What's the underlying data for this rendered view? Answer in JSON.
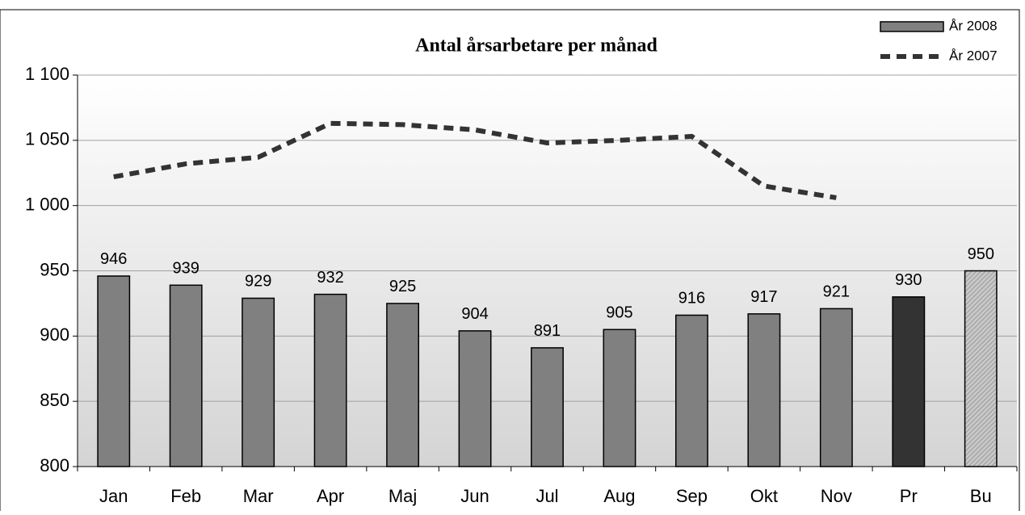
{
  "chart_data": {
    "type": "bar_line",
    "title": "Antal årsarbetare per månad",
    "categories": [
      "Jan",
      "Feb",
      "Mar",
      "Apr",
      "Maj",
      "Jun",
      "Jul",
      "Aug",
      "Sep",
      "Okt",
      "Nov",
      "Pr",
      "Bu"
    ],
    "series": [
      {
        "name": "År 2008",
        "type": "bar",
        "color": "#808080",
        "point_colors": [
          "#808080",
          "#808080",
          "#808080",
          "#808080",
          "#808080",
          "#808080",
          "#808080",
          "#808080",
          "#808080",
          "#808080",
          "#808080",
          "#333333",
          "#b4b4b4"
        ],
        "values": [
          946,
          939,
          929,
          932,
          925,
          904,
          891,
          905,
          916,
          917,
          921,
          930,
          950
        ]
      },
      {
        "name": "År 2007",
        "type": "line",
        "color": "#333333",
        "values": [
          1022,
          1032,
          1037,
          1063,
          1062,
          1058,
          1048,
          1050,
          1053,
          1015,
          1006,
          null,
          null
        ]
      }
    ],
    "ylim": [
      800,
      1100
    ],
    "yticks": [
      800,
      850,
      900,
      950,
      {
        "value": 1000,
        "label": "1 000"
      },
      {
        "value": 1050,
        "label": "1 050"
      },
      {
        "value": 1100,
        "label": "1 100"
      }
    ],
    "grid": true,
    "legend": "top-right"
  }
}
